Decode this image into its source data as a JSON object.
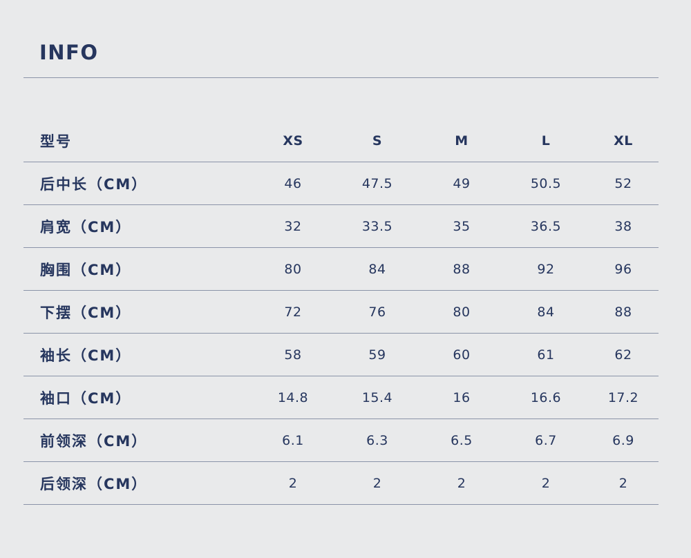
{
  "title": "INFO",
  "table": {
    "header": {
      "label": "型号",
      "sizes": [
        "XS",
        "S",
        "M",
        "L",
        "XL"
      ]
    },
    "rows": [
      {
        "label": "后中长（CM）",
        "values": [
          "46",
          "47.5",
          "49",
          "50.5",
          "52"
        ]
      },
      {
        "label": "肩宽（CM）",
        "values": [
          "32",
          "33.5",
          "35",
          "36.5",
          "38"
        ]
      },
      {
        "label": "胸围（CM）",
        "values": [
          "80",
          "84",
          "88",
          "92",
          "96"
        ]
      },
      {
        "label": "下摆（CM）",
        "values": [
          "72",
          "76",
          "80",
          "84",
          "88"
        ]
      },
      {
        "label": "袖长（CM）",
        "values": [
          "58",
          "59",
          "60",
          "61",
          "62"
        ]
      },
      {
        "label": "袖口（CM）",
        "values": [
          "14.8",
          "15.4",
          "16",
          "16.6",
          "17.2"
        ]
      },
      {
        "label": "前领深（CM）",
        "values": [
          "6.1",
          "6.3",
          "6.5",
          "6.7",
          "6.9"
        ]
      },
      {
        "label": "后领深（CM）",
        "values": [
          "2",
          "2",
          "2",
          "2",
          "2"
        ]
      }
    ]
  },
  "colors": {
    "background": "#e9eaeb",
    "text": "#26365e",
    "rule": "#8a93a8"
  }
}
